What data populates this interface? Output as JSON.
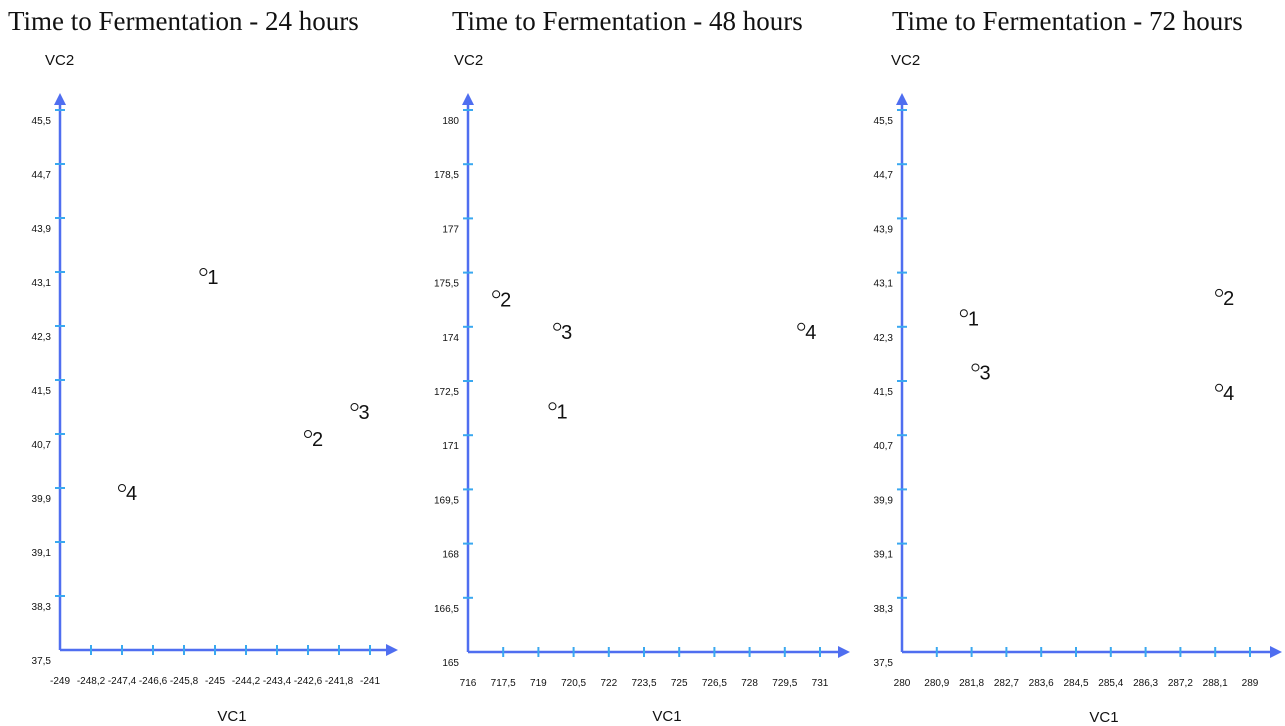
{
  "chart_data": [
    {
      "type": "scatter",
      "title": "Time to Fermentation - 24 hours",
      "xlabel": "VC1",
      "ylabel": "VC2",
      "xticks": [
        "-249",
        "-248,2",
        "-247,4",
        "-246,6",
        "-245,8",
        "-245",
        "-244,2",
        "-243,4",
        "-242,6",
        "-241,8",
        "-241"
      ],
      "yticks": [
        "37,5",
        "38,3",
        "39,1",
        "39,9",
        "40,7",
        "41,5",
        "42,3",
        "43,1",
        "43,9",
        "44,7",
        "45,5"
      ],
      "xlim": [
        -249,
        -241
      ],
      "ylim": [
        37.5,
        45.5
      ],
      "points": [
        {
          "label": "1",
          "x": -245.3,
          "y": 43.1
        },
        {
          "label": "2",
          "x": -242.6,
          "y": 40.7
        },
        {
          "label": "3",
          "x": -241.4,
          "y": 41.1
        },
        {
          "label": "4",
          "x": -247.4,
          "y": 39.9
        }
      ]
    },
    {
      "type": "scatter",
      "title": "Time to Fermentation - 48 hours",
      "xlabel": "VC1",
      "ylabel": "VC2",
      "xticks": [
        "716",
        "717,5",
        "719",
        "720,5",
        "722",
        "723,5",
        "725",
        "726,5",
        "728",
        "729,5",
        "731"
      ],
      "yticks": [
        "165",
        "166,5",
        "168",
        "169,5",
        "171",
        "172,5",
        "174",
        "175,5",
        "177",
        "178,5",
        "180"
      ],
      "xlim": [
        716,
        731
      ],
      "ylim": [
        165,
        180
      ],
      "points": [
        {
          "label": "1",
          "x": 719.6,
          "y": 171.8
        },
        {
          "label": "2",
          "x": 717.2,
          "y": 174.9
        },
        {
          "label": "3",
          "x": 719.8,
          "y": 174.0
        },
        {
          "label": "4",
          "x": 730.2,
          "y": 174.0
        }
      ]
    },
    {
      "type": "scatter",
      "title": "Time to Fermentation - 72 hours",
      "xlabel": "VC1",
      "ylabel": "VC2",
      "xticks": [
        "280",
        "280,9",
        "281,8",
        "282,7",
        "283,6",
        "284,5",
        "285,4",
        "286,3",
        "287,2",
        "288,1",
        "289"
      ],
      "yticks": [
        "37,5",
        "38,3",
        "39,1",
        "39,9",
        "40,7",
        "41,5",
        "42,3",
        "43,1",
        "43,9",
        "44,7",
        "45,5"
      ],
      "xlim": [
        280,
        289
      ],
      "ylim": [
        37.5,
        45.5
      ],
      "points": [
        {
          "label": "1",
          "x": 281.6,
          "y": 42.5
        },
        {
          "label": "2",
          "x": 288.2,
          "y": 42.8
        },
        {
          "label": "3",
          "x": 281.9,
          "y": 41.7
        },
        {
          "label": "4",
          "x": 288.2,
          "y": 41.4
        }
      ]
    }
  ]
}
